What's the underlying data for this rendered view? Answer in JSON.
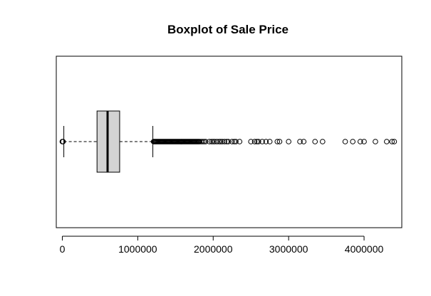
{
  "chart_data": {
    "type": "boxplot",
    "title": "Boxplot of Sale Price",
    "xlabel": "",
    "ylabel": "",
    "orientation": "horizontal",
    "xlim": [
      -80000,
      4500000
    ],
    "x_ticks": [
      0,
      1000000,
      2000000,
      3000000,
      4000000
    ],
    "x_tick_labels": [
      "0",
      "1000000",
      "2000000",
      "3000000",
      "4000000"
    ],
    "grid": false,
    "box": {
      "whisker_low": 20000,
      "q1": 460000,
      "median": 600000,
      "q3": 760000,
      "whisker_high": 1200000
    },
    "outliers": [
      0,
      5000,
      10000,
      1210000,
      1220000,
      1230000,
      1240000,
      1250000,
      1260000,
      1270000,
      1280000,
      1290000,
      1300000,
      1310000,
      1320000,
      1330000,
      1340000,
      1350000,
      1360000,
      1370000,
      1380000,
      1390000,
      1400000,
      1410000,
      1420000,
      1430000,
      1440000,
      1450000,
      1460000,
      1470000,
      1480000,
      1490000,
      1500000,
      1510000,
      1520000,
      1530000,
      1540000,
      1550000,
      1560000,
      1570000,
      1580000,
      1590000,
      1600000,
      1610000,
      1620000,
      1630000,
      1640000,
      1650000,
      1660000,
      1670000,
      1680000,
      1690000,
      1700000,
      1710000,
      1720000,
      1730000,
      1740000,
      1750000,
      1760000,
      1770000,
      1780000,
      1790000,
      1800000,
      1810000,
      1820000,
      1840000,
      1860000,
      1880000,
      1900000,
      1950000,
      1980000,
      2000000,
      2020000,
      2050000,
      2080000,
      2100000,
      2120000,
      2150000,
      2180000,
      2200000,
      2250000,
      2280000,
      2300000,
      2350000,
      2500000,
      2550000,
      2580000,
      2600000,
      2650000,
      2700000,
      2750000,
      2850000,
      2880000,
      3000000,
      3150000,
      3200000,
      3350000,
      3450000,
      3750000,
      3850000,
      3950000,
      4000000,
      4150000,
      4300000,
      4370000,
      4400000
    ],
    "colors": {
      "box_fill": "#d3d3d3",
      "stroke": "#000000",
      "background": "#ffffff"
    }
  }
}
